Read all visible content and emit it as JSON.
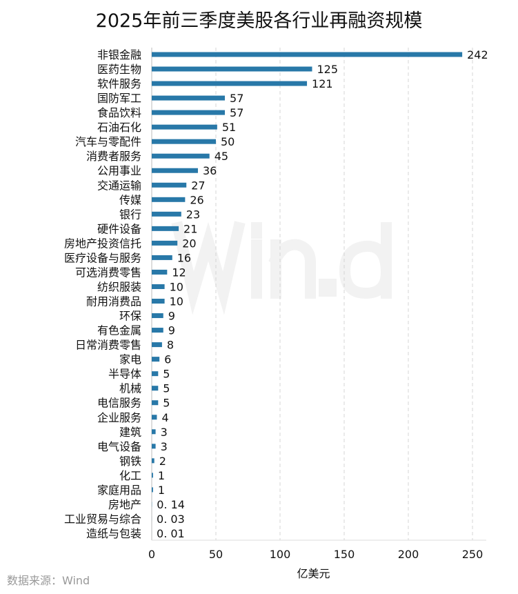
{
  "chart_data": {
    "type": "bar",
    "orientation": "horizontal",
    "title": "2025年前三季度美股各行业再融资规模",
    "xlabel": "亿美元",
    "ylabel": "",
    "xlim": [
      0,
      250
    ],
    "xticks": [
      0,
      50,
      100,
      150,
      200,
      250
    ],
    "grid": "vertical dashed",
    "bar_color": "#2878a8",
    "categories": [
      "非银金融",
      "医药生物",
      "软件服务",
      "国防军工",
      "食品饮料",
      "石油石化",
      "汽车与零配件",
      "消费者服务",
      "公用事业",
      "交通运输",
      "传媒",
      "银行",
      "硬件设备",
      "房地产投资信托",
      "医疗设备与服务",
      "可选消费零售",
      "纺织服装",
      "耐用消费品",
      "环保",
      "有色金属",
      "日常消费零售",
      "家电",
      "半导体",
      "机械",
      "电信服务",
      "企业服务",
      "建筑",
      "电气设备",
      "钢铁",
      "化工",
      "家庭用品",
      "房地产",
      "工业贸易与综合",
      "造纸与包装"
    ],
    "values": [
      242,
      125,
      121,
      57,
      57,
      51,
      50,
      45,
      36,
      27,
      26,
      23,
      21,
      20,
      16,
      12,
      10,
      10,
      9,
      9,
      8,
      6,
      5,
      5,
      5,
      4,
      3,
      3,
      2,
      1,
      1,
      0.14,
      0.03,
      0.01
    ],
    "labels": [
      "242",
      "125",
      "121",
      "57",
      "57",
      "51",
      "50",
      "45",
      "36",
      "27",
      "26",
      "23",
      "21",
      "20",
      "16",
      "12",
      "10",
      "10",
      "9",
      "9",
      "8",
      "6",
      "5",
      "5",
      "5",
      "4",
      "3",
      "3",
      "2",
      "1",
      "1",
      "0. 14",
      "0. 03",
      "0. 01"
    ]
  },
  "source": "数据来源：Wind",
  "watermark": "Wind"
}
